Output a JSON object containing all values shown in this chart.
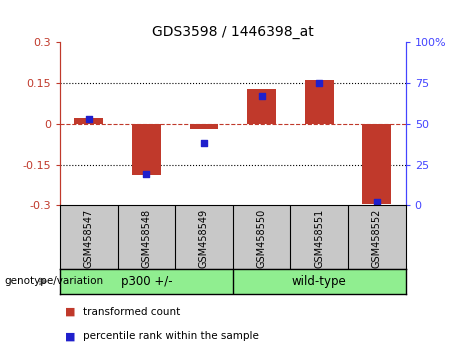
{
  "title": "GDS3598 / 1446398_at",
  "samples": [
    "GSM458547",
    "GSM458548",
    "GSM458549",
    "GSM458550",
    "GSM458551",
    "GSM458552"
  ],
  "red_values": [
    0.02,
    -0.19,
    -0.02,
    0.13,
    0.16,
    -0.295
  ],
  "blue_values": [
    53,
    19,
    38,
    67,
    75,
    2
  ],
  "ylim_left": [
    -0.3,
    0.3
  ],
  "ylim_right": [
    0,
    100
  ],
  "yticks_left": [
    -0.3,
    -0.15,
    0,
    0.15,
    0.3
  ],
  "yticks_right": [
    0,
    25,
    50,
    75,
    100
  ],
  "ytick_labels_left": [
    "-0.3",
    "-0.15",
    "0",
    "0.15",
    "0.3"
  ],
  "ytick_labels_right": [
    "0",
    "25",
    "50",
    "75",
    "100%"
  ],
  "hline_y": 0,
  "dotted_lines": [
    -0.15,
    0.15
  ],
  "group_labels": [
    "p300 +/-",
    "wild-type"
  ],
  "group_colors": [
    "#90EE90",
    "#90EE90"
  ],
  "bar_color": "#C0392B",
  "dot_color": "#1F1FCC",
  "bg_color": "#FFFFFF",
  "plot_bg": "#FFFFFF",
  "tick_bg": "#C8C8C8",
  "legend_red_label": "transformed count",
  "legend_blue_label": "percentile rank within the sample",
  "genotype_label": "genotype/variation",
  "bar_width": 0.5
}
